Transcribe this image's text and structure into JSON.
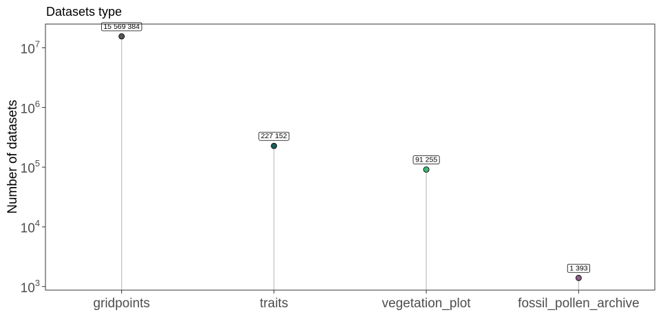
{
  "chart_data": {
    "type": "lollipop",
    "title": "Datasets type",
    "xlabel": "",
    "ylabel": "Number of datasets",
    "y_scale": "log10",
    "ylim": [
      870,
      25000000
    ],
    "y_ticks": [
      {
        "value": 1000,
        "base": "10",
        "exp": "3"
      },
      {
        "value": 10000,
        "base": "10",
        "exp": "4"
      },
      {
        "value": 100000,
        "base": "10",
        "exp": "5"
      },
      {
        "value": 1000000,
        "base": "10",
        "exp": "6"
      },
      {
        "value": 10000000,
        "base": "10",
        "exp": "7"
      }
    ],
    "grid": false,
    "categories": [
      "gridpoints",
      "traits",
      "vegetation_plot",
      "fossil_pollen_archive"
    ],
    "values": [
      15569384,
      227152,
      91255,
      1393
    ],
    "value_labels": [
      "15 569 384",
      "227 152",
      "91 255",
      "1 393"
    ],
    "colors": [
      "#555555",
      "#1b5e5a",
      "#3dbb78",
      "#8c5d85"
    ],
    "stem_color": "#bfbfbf"
  }
}
